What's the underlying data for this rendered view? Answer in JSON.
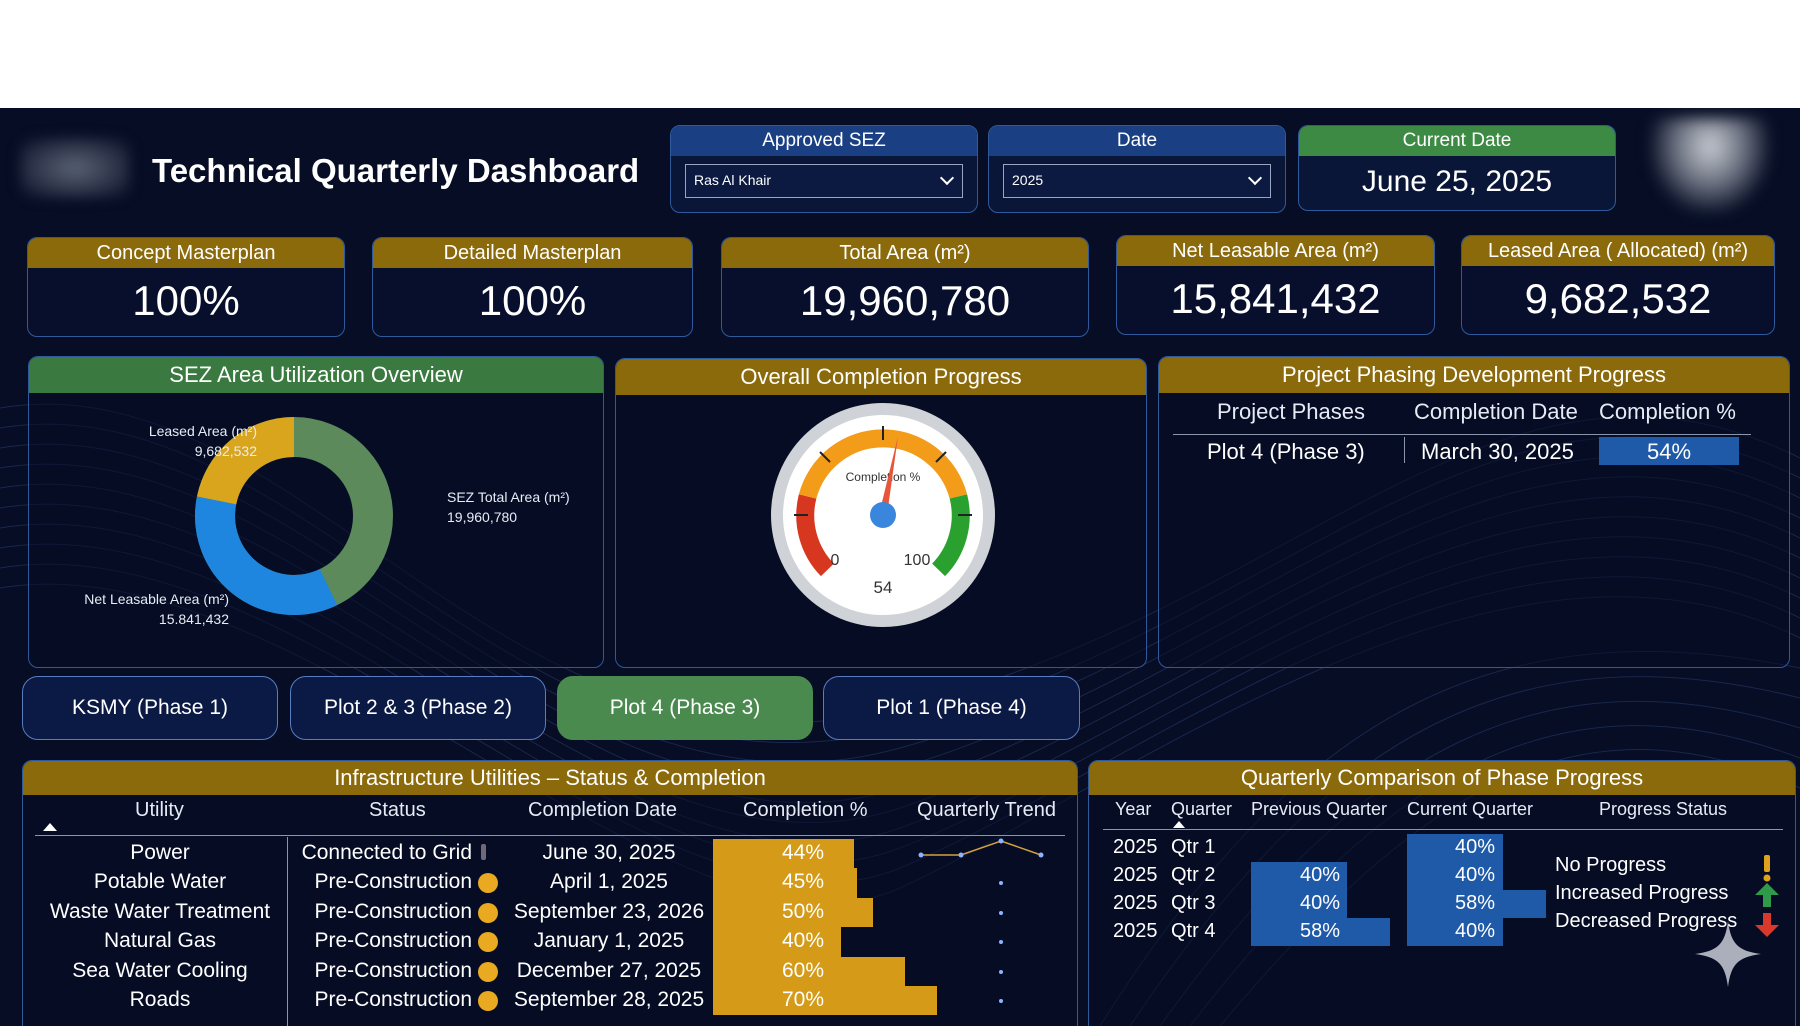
{
  "header": {
    "title": "Technical Quarterly Dashboard",
    "approved_sez": {
      "label": "Approved SEZ",
      "value": "Ras Al Khair"
    },
    "date": {
      "label": "Date",
      "value": "2025"
    },
    "current_date": {
      "label": "Current Date",
      "value": "June 25, 2025"
    }
  },
  "kpis": [
    {
      "label": "Concept Masterplan",
      "value": "100%"
    },
    {
      "label": "Detailed Masterplan",
      "value": "100%"
    },
    {
      "label": "Total Area (m²)",
      "value": "19,960,780"
    },
    {
      "label": "Net Leasable Area (m²)",
      "value": "15,841,432"
    },
    {
      "label": "Leased Area ( Allocated) (m²)",
      "value": "9,682,532"
    }
  ],
  "utilization": {
    "title": "SEZ Area Utilization Overview",
    "colors": {
      "leased": "#d9a51d",
      "net": "#1f86e0",
      "total": "#5c8a5a"
    },
    "labels": {
      "leased_name": "Leased Area (m²)",
      "leased_value": "9,682,532",
      "total_name": "SEZ Total Area (m²)",
      "total_value": "19,960,780",
      "net_name": "Net Leasable Area (m²)",
      "net_value": "15.841,432"
    }
  },
  "completion": {
    "title": "Overall Completion Progress",
    "gauge_label": "Completion %",
    "min": "0",
    "max": "100",
    "value": "54",
    "value_num": 54
  },
  "phasing": {
    "title": "Project Phasing Development Progress",
    "columns": [
      "Project Phases",
      "Completion Date",
      "Completion %"
    ],
    "row": {
      "phase": "Plot 4 (Phase 3)",
      "date": "March 30, 2025",
      "pct": "54%"
    }
  },
  "phase_buttons": [
    {
      "label": "KSMY (Phase 1)",
      "active": false
    },
    {
      "label": "Plot 2 & 3 (Phase 2)",
      "active": false
    },
    {
      "label": "Plot 4 (Phase 3)",
      "active": true
    },
    {
      "label": "Plot 1 (Phase 4)",
      "active": false
    }
  ],
  "infrastructure": {
    "title": "Infrastructure Utilities – Status & Completion",
    "columns": [
      "Utility",
      "Status",
      "Completion Date",
      "Completion %",
      "Quarterly Trend"
    ],
    "rows": [
      {
        "utility": "Power",
        "status": "Connected to Grid",
        "date": "June 30, 2025",
        "pct": "44%",
        "pct_num": 44
      },
      {
        "utility": "Potable Water",
        "status": "Pre-Construction",
        "date": "April 1, 2025",
        "pct": "45%",
        "pct_num": 45
      },
      {
        "utility": "Waste Water Treatment",
        "status": "Pre-Construction",
        "date": "September 23, 2026",
        "pct": "50%",
        "pct_num": 50
      },
      {
        "utility": "Natural Gas",
        "status": "Pre-Construction",
        "date": "January 1, 2025",
        "pct": "40%",
        "pct_num": 40
      },
      {
        "utility": "Sea Water Cooling",
        "status": "Pre-Construction",
        "date": "December 27, 2025",
        "pct": "60%",
        "pct_num": 60
      },
      {
        "utility": "Roads",
        "status": "Pre-Construction",
        "date": "September 28, 2025",
        "pct": "70%",
        "pct_num": 70
      }
    ]
  },
  "quarterly": {
    "title": "Quarterly Comparison of Phase Progress",
    "columns": [
      "Year",
      "Quarter",
      "Previous Quarter",
      "Current Quarter",
      "Progress Status"
    ],
    "rows": [
      {
        "year": "2025",
        "quarter": "Qtr 1",
        "prev": "",
        "prev_num": 0,
        "curr": "40%",
        "curr_num": 40
      },
      {
        "year": "2025",
        "quarter": "Qtr 2",
        "prev": "40%",
        "prev_num": 40,
        "curr": "40%",
        "curr_num": 40
      },
      {
        "year": "2025",
        "quarter": "Qtr 3",
        "prev": "40%",
        "prev_num": 40,
        "curr": "58%",
        "curr_num": 58
      },
      {
        "year": "2025",
        "quarter": "Qtr 4",
        "prev": "58%",
        "prev_num": 58,
        "curr": "40%",
        "curr_num": 40
      }
    ],
    "legend": [
      {
        "label": "No Progress",
        "icon": "exclamation-icon",
        "color": "#e0a21c"
      },
      {
        "label": "Increased Progress",
        "icon": "arrow-up-icon",
        "color": "#2e9a4a"
      },
      {
        "label": "Decreased Progress",
        "icon": "arrow-down-icon",
        "color": "#d8392b"
      }
    ]
  }
}
